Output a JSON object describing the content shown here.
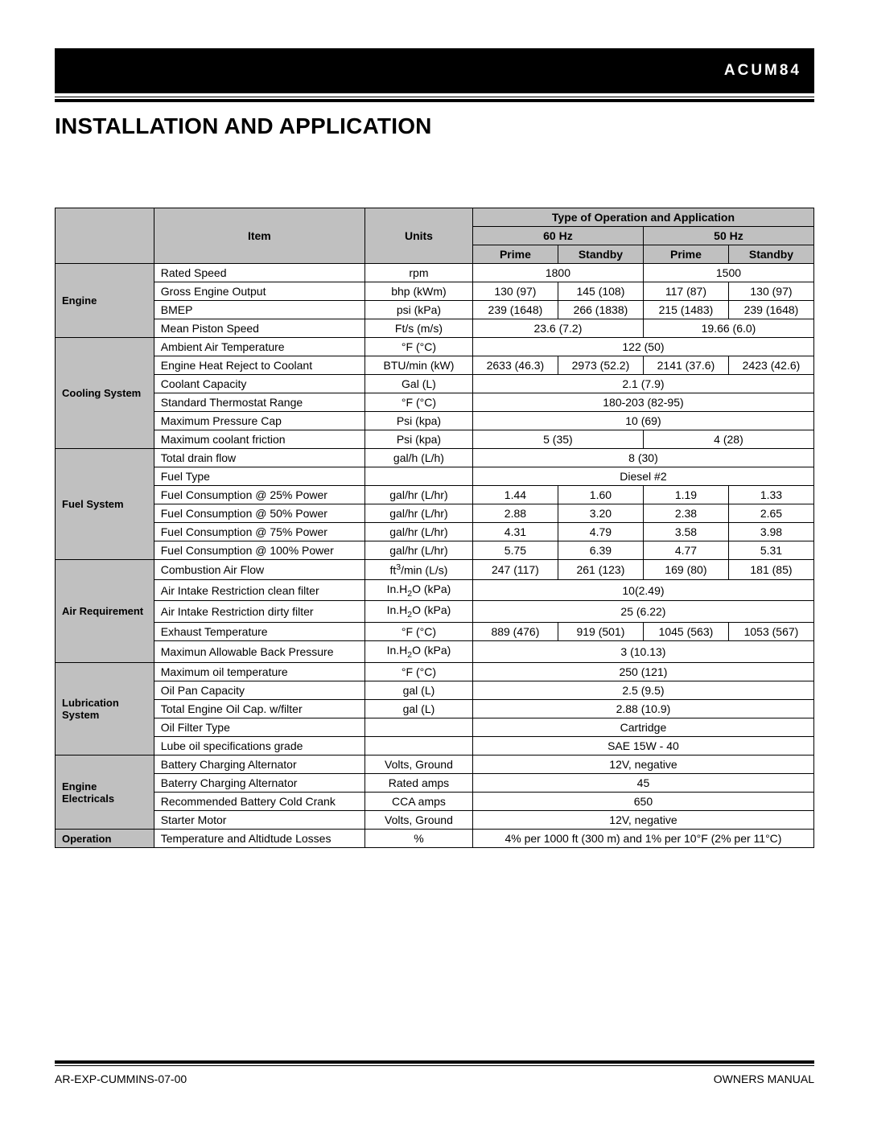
{
  "header": {
    "model_code": "ACUM84",
    "section_title": "Installation And Application"
  },
  "table": {
    "head": {
      "item": "Item",
      "units": "Units",
      "group": "Type of Operation and Application",
      "hz60": "60 Hz",
      "hz50": "50 Hz",
      "prime": "Prime",
      "standby": "Standby"
    },
    "categories": [
      {
        "label": "Engine",
        "rows": [
          {
            "item": "Rated Speed",
            "units": "rpm",
            "span": [
              [
                "1800",
                2
              ],
              [
                "1500",
                2
              ]
            ]
          },
          {
            "item": "Gross Engine Output",
            "units": "bhp (kWm)",
            "vals": [
              "130 (97)",
              "145 (108)",
              "117 (87)",
              "130 (97)"
            ]
          },
          {
            "item": "BMEP",
            "units": "psi (kPa)",
            "vals": [
              "239 (1648)",
              "266 (1838)",
              "215 (1483)",
              "239 (1648)"
            ]
          },
          {
            "item": "Mean Piston Speed",
            "units": "Ft/s (m/s)",
            "span": [
              [
                "23.6 (7.2)",
                2
              ],
              [
                "19.66 (6.0)",
                2
              ]
            ]
          }
        ]
      },
      {
        "label": "Cooling System",
        "rows": [
          {
            "item": "Ambient Air Temperature",
            "units": "°F (°C)",
            "span": [
              [
                "122 (50)",
                4
              ]
            ]
          },
          {
            "item": "Engine Heat Reject to Coolant",
            "units": "BTU/min (kW)",
            "vals": [
              "2633 (46.3)",
              "2973 (52.2)",
              "2141 (37.6)",
              "2423 (42.6)"
            ]
          },
          {
            "item": "Coolant Capacity",
            "units": "Gal (L)",
            "span": [
              [
                "2.1 (7.9)",
                4
              ]
            ]
          },
          {
            "item": "Standard  Thermostat Range",
            "units": "°F (°C)",
            "span": [
              [
                "180-203 (82-95)",
                4
              ]
            ]
          },
          {
            "item": "Maximum Pressure Cap",
            "units": "Psi (kpa)",
            "span": [
              [
                "10 (69)",
                4
              ]
            ]
          },
          {
            "item": "Maximum coolant friction",
            "units": "Psi (kpa)",
            "span": [
              [
                "5 (35)",
                2
              ],
              [
                "4 (28)",
                2
              ]
            ]
          }
        ]
      },
      {
        "label": "Fuel System",
        "rows": [
          {
            "item": "Total drain flow",
            "units": "gal/h (L/h)",
            "span": [
              [
                "8 (30)",
                4
              ]
            ]
          },
          {
            "item": "Fuel Type",
            "units": "",
            "span": [
              [
                "Diesel #2",
                4
              ]
            ]
          },
          {
            "item": "Fuel Consumption @ 25% Power",
            "units": "gal/hr (L/hr)",
            "vals": [
              "1.44",
              "1.60",
              "1.19",
              "1.33"
            ]
          },
          {
            "item": "Fuel Consumption @ 50% Power",
            "units": "gal/hr (L/hr)",
            "vals": [
              "2.88",
              "3.20",
              "2.38",
              "2.65"
            ]
          },
          {
            "item": "Fuel Consumption @ 75% Power",
            "units": "gal/hr (L/hr)",
            "vals": [
              "4.31",
              "4.79",
              "3.58",
              "3.98"
            ]
          },
          {
            "item": "Fuel Consumption @ 100% Power",
            "units": "gal/hr (L/hr)",
            "vals": [
              "5.75",
              "6.39",
              "4.77",
              "5.31"
            ]
          }
        ]
      },
      {
        "label": "Air Requirement",
        "rows": [
          {
            "item": "Combustion Air Flow",
            "units_html": "ft<sup>3</sup>/min (L/s)",
            "vals": [
              "247 (117)",
              "261 (123)",
              "169 (80)",
              "181 (85)"
            ]
          },
          {
            "item": "Air Intake Restriction clean filter",
            "units_html": "In.H<sub>2</sub>O (kPa)",
            "span": [
              [
                "10(2.49)",
                4
              ]
            ]
          },
          {
            "item": "Air Intake Restriction dirty filter",
            "units_html": "In.H<sub>2</sub>O (kPa)",
            "span": [
              [
                "25 (6.22)",
                4
              ]
            ]
          },
          {
            "item": "Exhaust Temperature",
            "units": "°F (°C)",
            "vals": [
              "889 (476)",
              "919 (501)",
              "1045 (563)",
              "1053 (567)"
            ]
          },
          {
            "item": "Maximun Allowable Back Pressure",
            "units_html": "In.H<sub>2</sub>O (kPa)",
            "span": [
              [
                "3 (10.13)",
                4
              ]
            ]
          }
        ]
      },
      {
        "label": "Lubrication System",
        "rows": [
          {
            "item": "Maximum oil temperature",
            "units": "°F (°C)",
            "span": [
              [
                "250 (121)",
                4
              ]
            ]
          },
          {
            "item": "Oil Pan Capacity",
            "units": "gal (L)",
            "span": [
              [
                "2.5 (9.5)",
                4
              ]
            ]
          },
          {
            "item": "Total Engine Oil Cap. w/filter",
            "units": "gal (L)",
            "span": [
              [
                "2.88 (10.9)",
                4
              ]
            ]
          },
          {
            "item": "Oil Filter Type",
            "units": "",
            "span": [
              [
                "Cartridge",
                4
              ]
            ]
          },
          {
            "item": "Lube oil specifications grade",
            "units": "",
            "span": [
              [
                "SAE 15W - 40",
                4
              ]
            ]
          }
        ]
      },
      {
        "label": "Engine Electricals",
        "rows": [
          {
            "item": "Battery Charging Alternator",
            "units": "Volts, Ground",
            "span": [
              [
                "12V, negative",
                4
              ]
            ]
          },
          {
            "item": "Baterry Charging Alternator",
            "units": "Rated amps",
            "span": [
              [
                "45",
                4
              ]
            ]
          },
          {
            "item": "Recommended Battery Cold Crank",
            "units": "CCA amps",
            "span": [
              [
                "650",
                4
              ]
            ]
          },
          {
            "item": "Starter Motor",
            "units": "Volts, Ground",
            "span": [
              [
                "12V, negative",
                4
              ]
            ]
          }
        ]
      },
      {
        "label": "Operation",
        "rows": [
          {
            "item": "Temperature and Altidtude Losses",
            "units": "%",
            "span": [
              [
                "4% per 1000 ft (300 m) and 1% per 10°F (2% per 11°C)",
                4
              ]
            ]
          }
        ]
      }
    ]
  },
  "footer": {
    "left": "AR-EXP-CUMMINS-07-00",
    "right": "OWNERS MANUAL"
  }
}
